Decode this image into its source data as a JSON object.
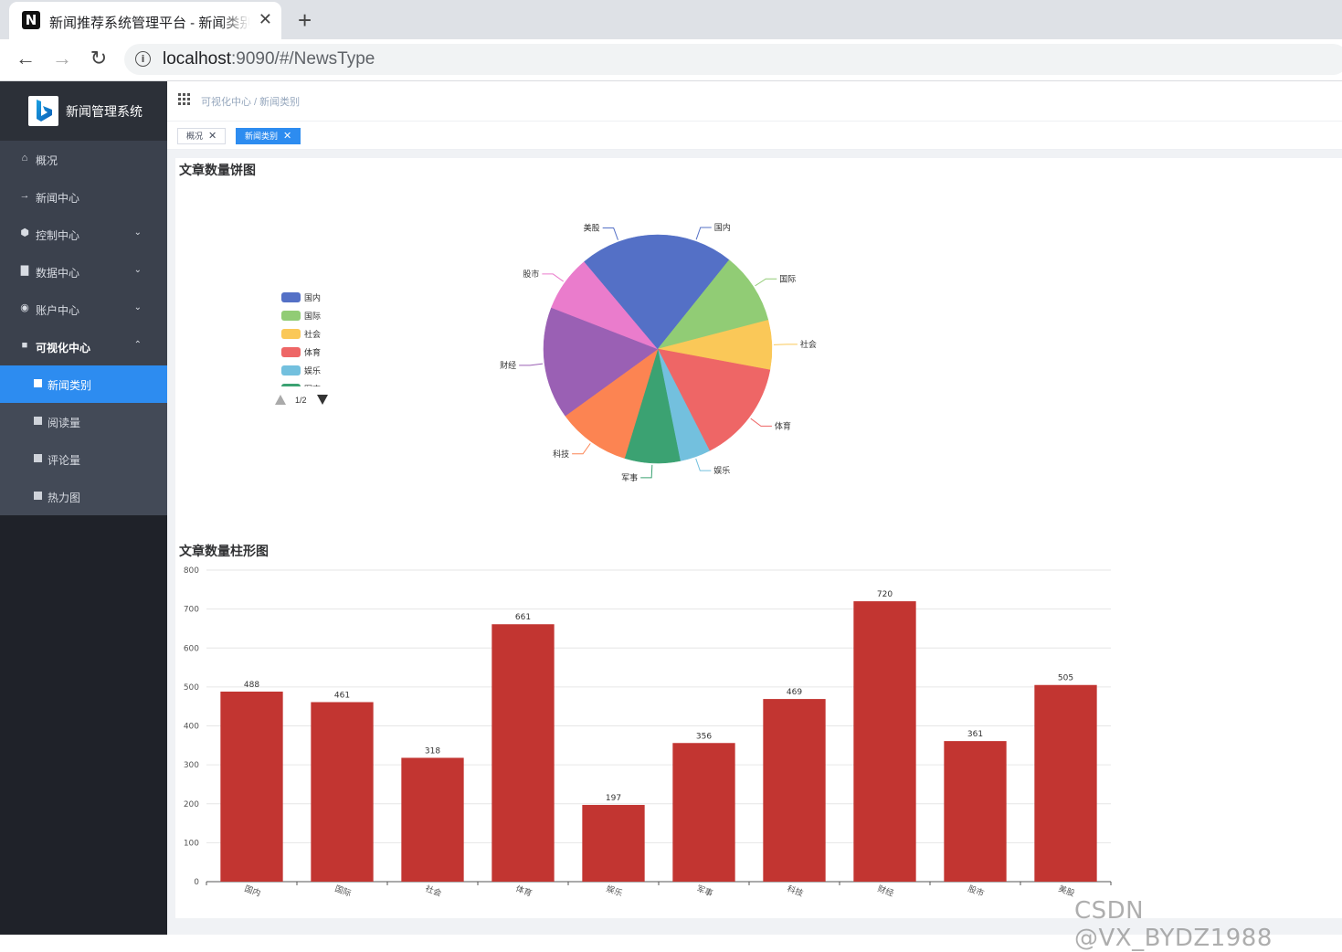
{
  "browser": {
    "tab_title": "新闻推荐系统管理平台 - 新闻类别",
    "tab_favicon": "N",
    "close_glyph": "✕",
    "new_tab_glyph": "+",
    "url_host": "localhost",
    "url_rest": ":9090/#/NewsType"
  },
  "sidebar": {
    "brand_title": "新闻管理系统",
    "items": [
      {
        "label": "概况",
        "icon": "home-icon",
        "glyph": "⌂",
        "arrow": ""
      },
      {
        "label": "新闻中心",
        "icon": "arrow-right-icon",
        "glyph": "→",
        "arrow": ""
      },
      {
        "label": "控制中心",
        "icon": "cog-icon",
        "glyph": "⬢",
        "arrow": "⌄"
      },
      {
        "label": "数据中心",
        "icon": "database-icon",
        "glyph": "▇",
        "arrow": "⌄"
      },
      {
        "label": "账户中心",
        "icon": "account-icon",
        "glyph": "◉",
        "arrow": "⌄"
      },
      {
        "label": "可视化中心",
        "icon": "chart-icon",
        "glyph": "■",
        "arrow": "⌃"
      }
    ],
    "subitems": [
      {
        "label": "新闻类别",
        "active": true
      },
      {
        "label": "阅读量",
        "active": false
      },
      {
        "label": "评论量",
        "active": false
      },
      {
        "label": "热力图",
        "active": false
      }
    ]
  },
  "header": {
    "breadcrumb": "可视化中心 / 新闻类别"
  },
  "tags": [
    {
      "label": "概况",
      "active": false
    },
    {
      "label": "新闻类别",
      "active": true
    }
  ],
  "pie_section": {
    "title": "文章数量饼图",
    "legend_page": "1/2"
  },
  "bar_section": {
    "title": "文章数量柱形图"
  },
  "watermark": "CSDN @VX_BYDZ1988",
  "chart_data": [
    {
      "type": "pie",
      "title": "文章数量饼图",
      "categories": [
        "国内",
        "国际",
        "社会",
        "体育",
        "娱乐",
        "军事",
        "科技",
        "财经",
        "股市",
        "美股"
      ],
      "values": [
        488,
        461,
        318,
        661,
        197,
        356,
        469,
        720,
        361,
        505
      ],
      "colors": [
        "#5470c6",
        "#91cc75",
        "#fac858",
        "#ee6666",
        "#73c0de",
        "#3ba272",
        "#fc8452",
        "#9a60b4",
        "#ea7ccc",
        "#5470c6"
      ],
      "legend_visible": [
        "国内",
        "国际",
        "社会",
        "体育",
        "娱乐",
        "军事"
      ],
      "legend_position": "left"
    },
    {
      "type": "bar",
      "title": "文章数量柱形图",
      "categories": [
        "国内",
        "国际",
        "社会",
        "体育",
        "娱乐",
        "军事",
        "科技",
        "财经",
        "股市",
        "美股"
      ],
      "values": [
        488,
        461,
        318,
        661,
        197,
        356,
        469,
        720,
        361,
        505
      ],
      "ylim": [
        0,
        800
      ],
      "yticks": [
        0,
        100,
        200,
        300,
        400,
        500,
        600,
        700,
        800
      ],
      "color": "#c23531",
      "grid": true
    }
  ]
}
